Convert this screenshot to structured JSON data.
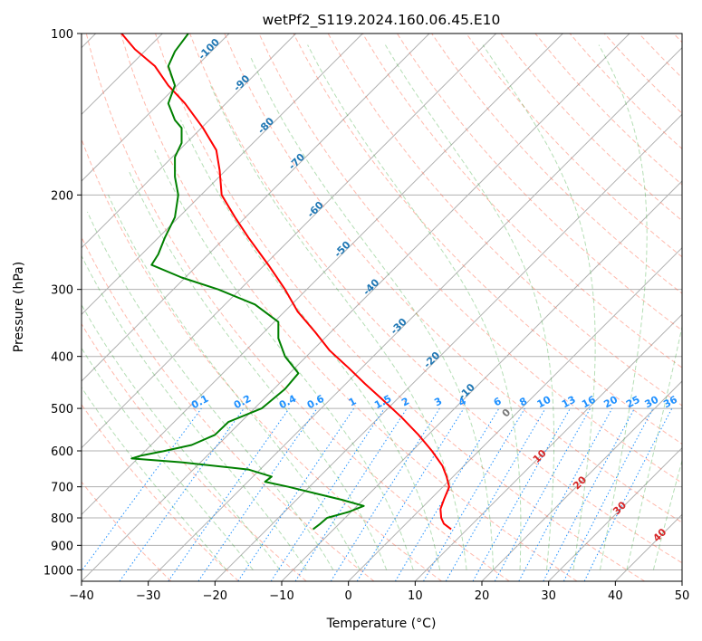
{
  "chart_data": {
    "type": "line",
    "subtype": "skew-t log-p diagram",
    "title": "wetPf2_S119.2024.160.06.45.E10",
    "xlabel": "Temperature (°C)",
    "ylabel": "Pressure (hPa)",
    "xlim": [
      -40,
      50
    ],
    "ylim": [
      1050,
      100
    ],
    "y_scale": "log",
    "grid": true,
    "x_ticks": [
      -40,
      -30,
      -20,
      -10,
      0,
      10,
      20,
      30,
      40,
      50
    ],
    "x_tick_labels": [
      "−40",
      "−30",
      "−20",
      "−10",
      "0",
      "10",
      "20",
      "30",
      "40",
      "50"
    ],
    "y_ticks": [
      100,
      200,
      300,
      400,
      500,
      600,
      700,
      800,
      900,
      1000
    ],
    "y_tick_labels": [
      "100",
      "200",
      "300",
      "400",
      "500",
      "600",
      "700",
      "800",
      "900",
      "1000"
    ],
    "series": [
      {
        "color": "#ff0000",
        "points": [
          {
            "p": 840,
            "t": 15.4
          },
          {
            "p": 820,
            "t": 14.3
          },
          {
            "p": 800,
            "t": 13.9
          },
          {
            "p": 770,
            "t": 13.8
          },
          {
            "p": 740,
            "t": 14.3
          },
          {
            "p": 700,
            "t": 15.1
          },
          {
            "p": 670,
            "t": 14.7
          },
          {
            "p": 640,
            "t": 14.1
          },
          {
            "p": 600,
            "t": 12.5
          },
          {
            "p": 560,
            "t": 10.5
          },
          {
            "p": 520,
            "t": 8.0
          },
          {
            "p": 480,
            "t": 5.0
          },
          {
            "p": 450,
            "t": 2.5
          },
          {
            "p": 420,
            "t": 0.0
          },
          {
            "p": 390,
            "t": -2.8
          },
          {
            "p": 360,
            "t": -5.0
          },
          {
            "p": 330,
            "t": -7.6
          },
          {
            "p": 300,
            "t": -9.5
          },
          {
            "p": 270,
            "t": -12.0
          },
          {
            "p": 240,
            "t": -15.0
          },
          {
            "p": 220,
            "t": -17.0
          },
          {
            "p": 200,
            "t": -19.0
          },
          {
            "p": 180,
            "t": -19.3
          },
          {
            "p": 165,
            "t": -19.8
          },
          {
            "p": 150,
            "t": -21.8
          },
          {
            "p": 135,
            "t": -24.5
          },
          {
            "p": 125,
            "t": -27.0
          },
          {
            "p": 115,
            "t": -29.0
          },
          {
            "p": 107,
            "t": -32.0
          },
          {
            "p": 100,
            "t": -34.0
          }
        ]
      },
      {
        "color": "#008000",
        "points": [
          {
            "p": 840,
            "t": -5.3
          },
          {
            "p": 820,
            "t": -4.2
          },
          {
            "p": 800,
            "t": -3.2
          },
          {
            "p": 780,
            "t": 0.0
          },
          {
            "p": 760,
            "t": 2.3
          },
          {
            "p": 740,
            "t": -1.0
          },
          {
            "p": 720,
            "t": -5.0
          },
          {
            "p": 700,
            "t": -9.0
          },
          {
            "p": 685,
            "t": -12.5
          },
          {
            "p": 670,
            "t": -11.5
          },
          {
            "p": 650,
            "t": -15.0
          },
          {
            "p": 630,
            "t": -25.0
          },
          {
            "p": 620,
            "t": -32.5
          },
          {
            "p": 612,
            "t": -31.0
          },
          {
            "p": 600,
            "t": -27.5
          },
          {
            "p": 585,
            "t": -23.5
          },
          {
            "p": 560,
            "t": -20.0
          },
          {
            "p": 530,
            "t": -18.0
          },
          {
            "p": 500,
            "t": -13.0
          },
          {
            "p": 460,
            "t": -9.5
          },
          {
            "p": 430,
            "t": -7.5
          },
          {
            "p": 400,
            "t": -9.5
          },
          {
            "p": 370,
            "t": -10.5
          },
          {
            "p": 345,
            "t": -10.5
          },
          {
            "p": 320,
            "t": -14.0
          },
          {
            "p": 300,
            "t": -19.5
          },
          {
            "p": 285,
            "t": -25.0
          },
          {
            "p": 270,
            "t": -29.5
          },
          {
            "p": 258,
            "t": -28.5
          },
          {
            "p": 240,
            "t": -27.5
          },
          {
            "p": 220,
            "t": -26.0
          },
          {
            "p": 200,
            "t": -25.5
          },
          {
            "p": 185,
            "t": -26.0
          },
          {
            "p": 170,
            "t": -26.0
          },
          {
            "p": 160,
            "t": -25.0
          },
          {
            "p": 150,
            "t": -25.0
          },
          {
            "p": 145,
            "t": -26.0
          },
          {
            "p": 135,
            "t": -27.0
          },
          {
            "p": 125,
            "t": -26.0
          },
          {
            "p": 115,
            "t": -27.0
          },
          {
            "p": 108,
            "t": -26.0
          },
          {
            "p": 100,
            "t": -24.0
          }
        ]
      }
    ],
    "isotherm_labels": [
      {
        "t": -100,
        "text": "-100"
      },
      {
        "t": -90,
        "text": "-90"
      },
      {
        "t": -80,
        "text": "-80"
      },
      {
        "t": -70,
        "text": "-70"
      },
      {
        "t": -60,
        "text": "-60"
      },
      {
        "t": -50,
        "text": "-50"
      },
      {
        "t": -40,
        "text": "-40"
      },
      {
        "t": -30,
        "text": "-30"
      },
      {
        "t": -20,
        "text": "-20"
      },
      {
        "t": -10,
        "text": "-10"
      }
    ],
    "mixing_ratio_labels": [
      "0.1",
      "0.2",
      "0.4",
      "0.6",
      "1",
      "1.5",
      "2",
      "3",
      "4",
      "6",
      "8",
      "10",
      "13",
      "16",
      "20",
      "25",
      "30",
      "36"
    ],
    "mixing_ratio_values": [
      0.1,
      0.2,
      0.4,
      0.6,
      1,
      1.5,
      2,
      3,
      4,
      6,
      8,
      10,
      13,
      16,
      20,
      25,
      30,
      36
    ],
    "moist_adiabat_labels": [
      "0",
      "10",
      "20",
      "30",
      "40"
    ],
    "colors": {
      "temperature": "#ff0000",
      "dewpoint": "#008000",
      "isotherm_label": "#1f77b4",
      "mixing_ratio": "#1e90ff",
      "dry_adiabat": "#ff6347",
      "moist_adiabat": "#2ca02c",
      "moist_label": "#d62728",
      "grid": "#b0b0b0"
    }
  }
}
